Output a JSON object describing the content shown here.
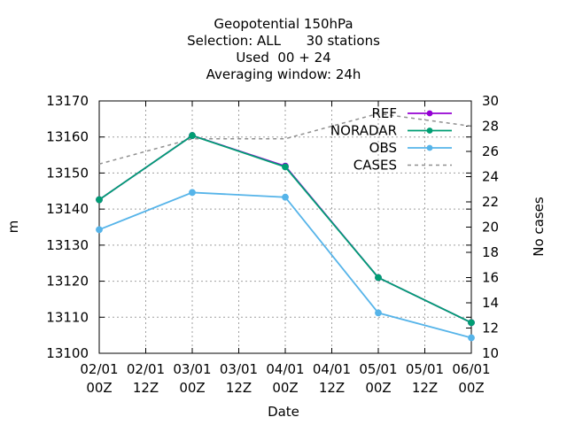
{
  "chart_data": {
    "type": "line",
    "title": [
      "Geopotential 150hPa",
      "Selection: ALL      30 stations",
      "Used  00 + 24",
      "Averaging window: 24h"
    ],
    "xlabel": "Date",
    "ylabel": "m",
    "y2label": "No cases",
    "x_ticks": [
      {
        "day": "02/01",
        "hour": "00Z"
      },
      {
        "day": "02/01",
        "hour": "12Z"
      },
      {
        "day": "03/01",
        "hour": "00Z"
      },
      {
        "day": "03/01",
        "hour": "12Z"
      },
      {
        "day": "04/01",
        "hour": "00Z"
      },
      {
        "day": "04/01",
        "hour": "12Z"
      },
      {
        "day": "05/01",
        "hour": "00Z"
      },
      {
        "day": "05/01",
        "hour": "12Z"
      },
      {
        "day": "06/01",
        "hour": "00Z"
      }
    ],
    "x_hours": [
      0,
      12,
      24,
      36,
      48,
      60,
      72,
      84,
      96
    ],
    "ylim": [
      13100,
      13170
    ],
    "y_ticks": [
      13100,
      13110,
      13120,
      13130,
      13140,
      13150,
      13160,
      13170
    ],
    "y2lim": [
      10,
      30
    ],
    "y2_ticks": [
      10,
      12,
      14,
      16,
      18,
      20,
      22,
      24,
      26,
      28,
      30
    ],
    "grid": true,
    "legend_position": "top-right",
    "series": [
      {
        "name": "REF",
        "axis": "y",
        "color": "#9400d3",
        "style": "line-points",
        "x": [
          0,
          24,
          48,
          72,
          96
        ],
        "y": [
          13142.6,
          13160.4,
          13151.9,
          13121.0,
          13108.5
        ]
      },
      {
        "name": "NORADAR",
        "axis": "y",
        "color": "#009e73",
        "style": "line-points",
        "x": [
          0,
          24,
          48,
          72,
          96
        ],
        "y": [
          13142.6,
          13160.4,
          13151.7,
          13121.0,
          13108.5
        ]
      },
      {
        "name": "OBS",
        "axis": "y",
        "color": "#56b4e9",
        "style": "line-points",
        "x": [
          0,
          24,
          48,
          72,
          96
        ],
        "y": [
          13134.3,
          13144.6,
          13143.3,
          13111.2,
          13104.3
        ]
      },
      {
        "name": "CASES",
        "axis": "y2",
        "color": "#909090",
        "style": "dashed",
        "x": [
          0,
          24,
          48,
          72,
          96
        ],
        "y": [
          25,
          27,
          27,
          29,
          28
        ]
      }
    ]
  }
}
